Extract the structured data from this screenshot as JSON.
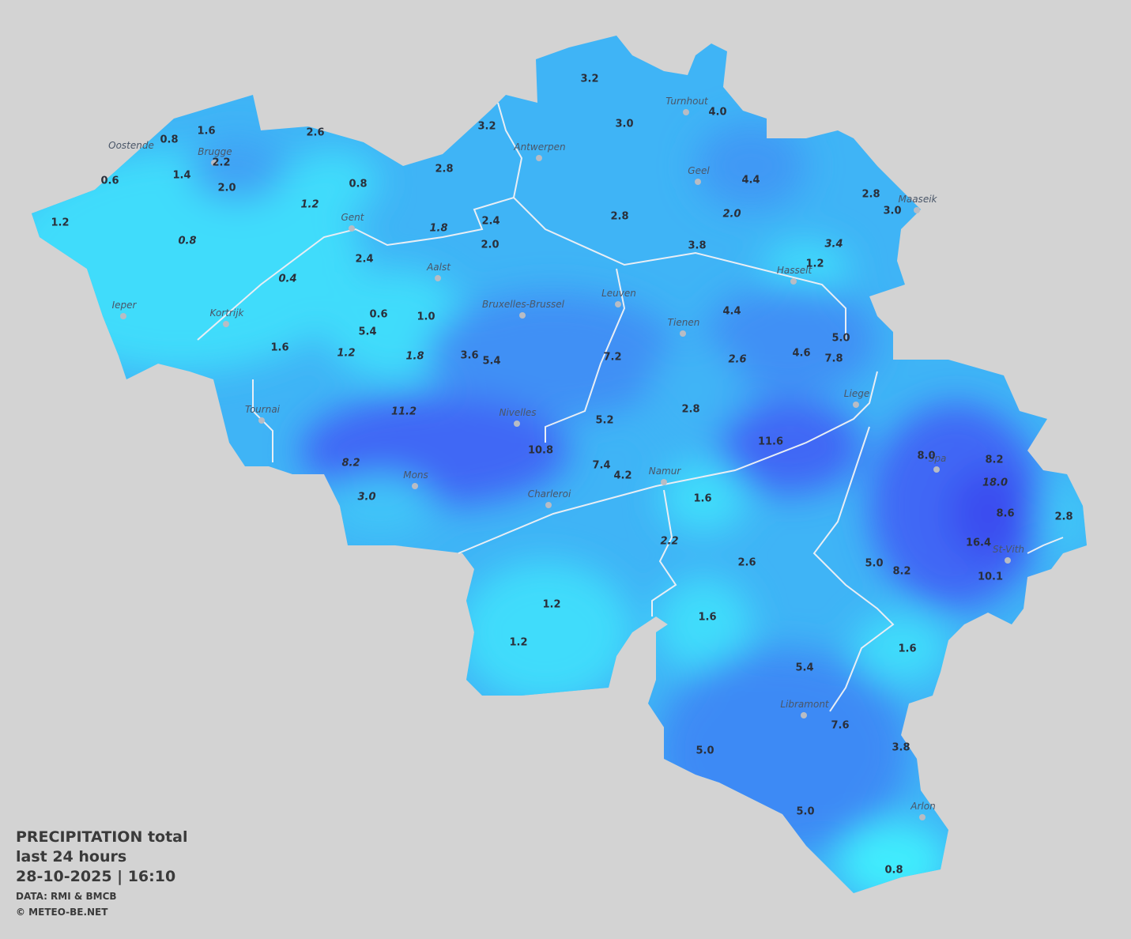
{
  "title": [
    "PRECIPITATION total",
    "last 24 hours",
    "28-10-2025  |  16:10"
  ],
  "credits": [
    "DATA: RMI & BMCB",
    "© METEO-BE.NET"
  ],
  "cities": [
    "Oostende",
    "Brugge",
    "Gent",
    "Antwerpen",
    "Turnhout",
    "Geel",
    "Maaseik",
    "Hasselt",
    "Aalst",
    "Leuven",
    "Bruxelles-Brussel",
    "Ieper",
    "Kortrijk",
    "Tienen",
    "Liege",
    "Tournai",
    "Nivelles",
    "Spa",
    "Namur",
    "Mons",
    "Charleroi",
    "St-Vith",
    "Libramont",
    "Arlon"
  ],
  "readings": [
    "3.2",
    "3.0",
    "4.0",
    "1.6",
    "0.8",
    "2.6",
    "3.2",
    "2.2",
    "1.4",
    "2.8",
    "0.6",
    "2.0",
    "0.8",
    "4.4",
    "2.8",
    "3.0",
    "1.2",
    "1.2",
    "2.4",
    "2.8",
    "2.0",
    "0.8",
    "1.8",
    "2.0",
    "3.8",
    "3.4",
    "1.2",
    "2.4",
    "0.4",
    "0.6",
    "1.0",
    "4.4",
    "5.4",
    "5.0",
    "1.6",
    "1.2",
    "1.8",
    "3.6",
    "5.4",
    "7.2",
    "2.6",
    "4.6",
    "7.8",
    "11.2",
    "2.8",
    "5.2",
    "11.6",
    "10.8",
    "8.0",
    "8.2",
    "8.2",
    "7.4",
    "4.2",
    "18.0",
    "3.0",
    "1.6",
    "8.6",
    "2.8",
    "16.4",
    "2.2",
    "2.6",
    "5.0",
    "8.2",
    "10.1",
    "1.2",
    "1.6",
    "1.2",
    "1.6",
    "5.4",
    "7.6",
    "3.8",
    "5.0",
    "5.0",
    "0.8"
  ]
}
